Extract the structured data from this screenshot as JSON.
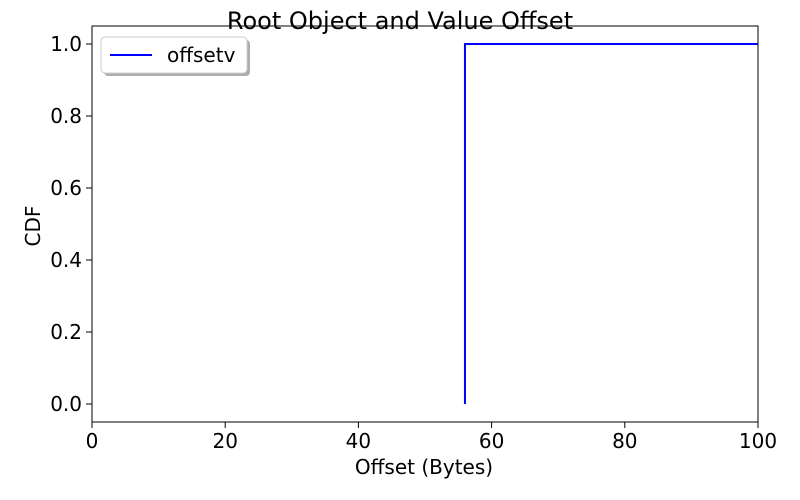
{
  "chart_data": {
    "type": "line",
    "title": "Root Object and Value Offset",
    "xlabel": "Offset (Bytes)",
    "ylabel": "CDF",
    "xlim": [
      0,
      100
    ],
    "ylim": [
      -0.05,
      1.05
    ],
    "xticks": [
      0,
      20,
      40,
      60,
      80,
      100
    ],
    "xtick_labels": [
      "0",
      "20",
      "40",
      "60",
      "80",
      "100"
    ],
    "yticks": [
      0.0,
      0.2,
      0.4,
      0.6,
      0.8,
      1.0
    ],
    "ytick_labels": [
      "0.0",
      "0.2",
      "0.4",
      "0.6",
      "0.8",
      "1.0"
    ],
    "grid": false,
    "legend_position": "top-left",
    "series": [
      {
        "name": "offsetv",
        "color": "#0000ff",
        "x": [
          56,
          56,
          100
        ],
        "y": [
          0.0,
          1.0,
          1.0
        ]
      }
    ]
  }
}
